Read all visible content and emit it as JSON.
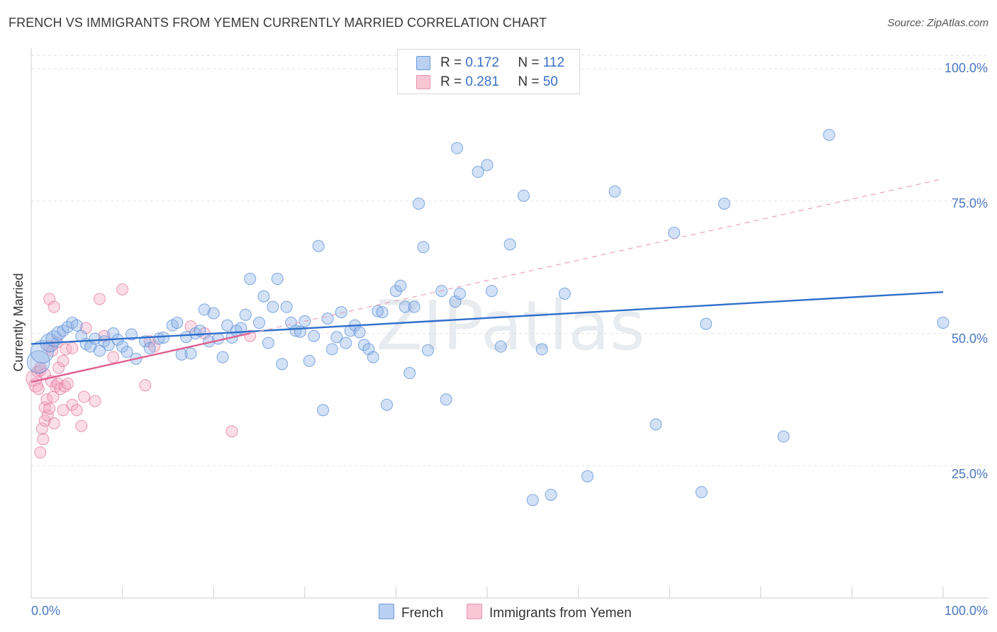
{
  "title": "FRENCH VS IMMIGRANTS FROM YEMEN CURRENTLY MARRIED CORRELATION CHART",
  "source": "Source: ZipAtlas.com",
  "watermark": "ZIPatlas",
  "chart_data": {
    "type": "scatter",
    "title": "FRENCH VS IMMIGRANTS FROM YEMEN CURRENTLY MARRIED CORRELATION CHART",
    "xlabel": "",
    "ylabel": "Currently Married",
    "xlim": [
      0,
      100
    ],
    "ylim": [
      0,
      100
    ],
    "x_tick_labels": {
      "left": "0.0%",
      "right": "100.0%"
    },
    "y_ticks": [
      {
        "value": 100,
        "label": "100.0%"
      },
      {
        "value": 75,
        "label": "75.0%"
      },
      {
        "value": 50,
        "label": "50.0%"
      },
      {
        "value": 25,
        "label": "25.0%"
      }
    ],
    "grid": true,
    "legend": {
      "position": "top-center",
      "entries": [
        {
          "r_label": "R =",
          "r_value": "0.172",
          "n_label": "N =",
          "n_value": "112"
        },
        {
          "r_label": "R =",
          "r_value": "0.281",
          "n_label": "N =",
          "n_value": "50"
        }
      ]
    },
    "series": [
      {
        "name": "French",
        "color": "#8fb4e8",
        "edge": "#5b8fd6",
        "trend": {
          "x0": 0,
          "y0": 48.0,
          "x1": 100,
          "y1": 57.8,
          "color": "#2f6fcb"
        },
        "points": [
          [
            0.8,
            44.6,
            2
          ],
          [
            1.2,
            46.5,
            2
          ],
          [
            2.0,
            48.2,
            1.6
          ],
          [
            2.5,
            49.0,
            1.4
          ],
          [
            3.0,
            50.0,
            1.2
          ],
          [
            3.5,
            50.5,
            1
          ],
          [
            4.0,
            51.2,
            1
          ],
          [
            4.5,
            52.0,
            1
          ],
          [
            5.0,
            51.5,
            1
          ],
          [
            5.5,
            49.5,
            1
          ],
          [
            6.0,
            48.0,
            1
          ],
          [
            6.5,
            47.5,
            1
          ],
          [
            7.0,
            49.0,
            1
          ],
          [
            7.5,
            46.7,
            1
          ],
          [
            8.0,
            48.5,
            1
          ],
          [
            8.5,
            47.8,
            1
          ],
          [
            9.0,
            50.0,
            1
          ],
          [
            9.5,
            48.8,
            1
          ],
          [
            10.0,
            47.5,
            1
          ],
          [
            10.5,
            46.5,
            1
          ],
          [
            11.0,
            49.8,
            1
          ],
          [
            11.5,
            45.2,
            1
          ],
          [
            12.5,
            48.5,
            1
          ],
          [
            13.0,
            47.2,
            1
          ],
          [
            14.0,
            49.0,
            1
          ],
          [
            14.5,
            49.2,
            1
          ],
          [
            15.5,
            51.5,
            1
          ],
          [
            16.0,
            52.0,
            1
          ],
          [
            16.5,
            46.0,
            1
          ],
          [
            17.0,
            49.3,
            1
          ],
          [
            17.5,
            46.2,
            1
          ],
          [
            18.0,
            50.0,
            1
          ],
          [
            18.5,
            50.5,
            1
          ],
          [
            19.0,
            54.5,
            1
          ],
          [
            19.5,
            48.5,
            1
          ],
          [
            20.0,
            53.8,
            1
          ],
          [
            20.5,
            49.0,
            1
          ],
          [
            21.0,
            45.5,
            1
          ],
          [
            21.5,
            51.5,
            1
          ],
          [
            22.0,
            49.2,
            1
          ],
          [
            22.5,
            50.5,
            1
          ],
          [
            23.0,
            51.0,
            1
          ],
          [
            23.5,
            53.5,
            1
          ],
          [
            24.0,
            60.3,
            1
          ],
          [
            25.0,
            52.0,
            1
          ],
          [
            25.5,
            57.0,
            1
          ],
          [
            26.0,
            48.2,
            1
          ],
          [
            26.5,
            55.0,
            1
          ],
          [
            27.0,
            60.3,
            1
          ],
          [
            27.5,
            44.2,
            1
          ],
          [
            28.0,
            55.0,
            1
          ],
          [
            28.5,
            52.0,
            1
          ],
          [
            29.0,
            50.5,
            1
          ],
          [
            29.5,
            50.3,
            1
          ],
          [
            30.0,
            52.3,
            1
          ],
          [
            30.5,
            44.8,
            1
          ],
          [
            31.0,
            49.5,
            1
          ],
          [
            31.5,
            66.5,
            1
          ],
          [
            32.0,
            35.5,
            1
          ],
          [
            32.5,
            52.8,
            1
          ],
          [
            33.0,
            47.0,
            1
          ],
          [
            33.5,
            49.3,
            1
          ],
          [
            34.0,
            54.0,
            1
          ],
          [
            34.5,
            48.2,
            1
          ],
          [
            35.0,
            50.5,
            1
          ],
          [
            35.5,
            51.5,
            1
          ],
          [
            36.0,
            50.2,
            1
          ],
          [
            36.5,
            47.8,
            1
          ],
          [
            37.0,
            47.0,
            1
          ],
          [
            37.5,
            45.5,
            1
          ],
          [
            38.0,
            54.2,
            1
          ],
          [
            38.5,
            54.0,
            1
          ],
          [
            39.0,
            36.5,
            1
          ],
          [
            40.0,
            58.0,
            1
          ],
          [
            40.5,
            59.0,
            1
          ],
          [
            41.0,
            55.0,
            1
          ],
          [
            41.5,
            42.5,
            1
          ],
          [
            42.0,
            55.0,
            1
          ],
          [
            42.5,
            74.5,
            1
          ],
          [
            43.0,
            66.3,
            1
          ],
          [
            43.5,
            46.8,
            1
          ],
          [
            45.0,
            58.0,
            1
          ],
          [
            45.5,
            37.5,
            1
          ],
          [
            46.5,
            56.0,
            1
          ],
          [
            46.7,
            85.0,
            1
          ],
          [
            47.0,
            57.5,
            1
          ],
          [
            49.0,
            80.5,
            1
          ],
          [
            50.0,
            81.8,
            1
          ],
          [
            50.5,
            58.0,
            1
          ],
          [
            51.5,
            47.5,
            1
          ],
          [
            52.5,
            66.8,
            1
          ],
          [
            54.0,
            76.0,
            1
          ],
          [
            55.0,
            18.5,
            1
          ],
          [
            56.0,
            47.0,
            1
          ],
          [
            57.0,
            19.5,
            1
          ],
          [
            58.5,
            57.5,
            1
          ],
          [
            61.0,
            23.0,
            1
          ],
          [
            64.0,
            76.8,
            1
          ],
          [
            68.5,
            32.8,
            1
          ],
          [
            70.5,
            69.0,
            1
          ],
          [
            73.5,
            20.0,
            1
          ],
          [
            74.0,
            51.8,
            1
          ],
          [
            76.0,
            74.5,
            1
          ],
          [
            82.5,
            30.5,
            1
          ],
          [
            87.5,
            87.5,
            1
          ],
          [
            100.0,
            52.0,
            1
          ]
        ]
      },
      {
        "name": "Immigrants from Yemen",
        "color": "#f4a9c2",
        "edge": "#e07a9f",
        "trend": {
          "x0": 0,
          "y0": 40.8,
          "x1": 24.0,
          "y1": 50.0,
          "color": "#e06090",
          "dash_to": {
            "x": 100,
            "y": 79.2
          }
        },
        "points": [
          [
            0.3,
            41.5,
            1.4
          ],
          [
            0.5,
            40.2,
            1.2
          ],
          [
            0.7,
            42.8,
            1
          ],
          [
            0.8,
            39.5,
            1
          ],
          [
            1.0,
            43.0,
            1
          ],
          [
            1.0,
            27.5,
            1
          ],
          [
            1.2,
            32.0,
            1
          ],
          [
            1.3,
            30.0,
            1
          ],
          [
            1.5,
            36.0,
            1
          ],
          [
            1.5,
            33.5,
            1
          ],
          [
            1.7,
            37.5,
            1
          ],
          [
            1.8,
            34.5,
            1
          ],
          [
            2.0,
            35.8,
            1
          ],
          [
            2.0,
            47.5,
            1
          ],
          [
            2.0,
            56.5,
            1
          ],
          [
            2.2,
            41.0,
            1
          ],
          [
            2.3,
            46.7,
            1
          ],
          [
            2.4,
            38.0,
            1
          ],
          [
            2.5,
            33.0,
            1
          ],
          [
            2.5,
            55.0,
            1
          ],
          [
            2.7,
            40.0,
            1
          ],
          [
            2.9,
            40.5,
            1
          ],
          [
            3.0,
            43.5,
            1
          ],
          [
            3.2,
            39.5,
            1
          ],
          [
            3.5,
            44.8,
            1
          ],
          [
            3.5,
            35.5,
            1
          ],
          [
            3.7,
            40.0,
            1
          ],
          [
            3.8,
            47.0,
            1
          ],
          [
            4.0,
            40.5,
            1
          ],
          [
            4.5,
            47.2,
            1
          ],
          [
            4.5,
            36.5,
            1
          ],
          [
            5.0,
            35.5,
            1
          ],
          [
            5.5,
            32.5,
            1
          ],
          [
            5.8,
            38.0,
            1
          ],
          [
            6.0,
            51.0,
            1
          ],
          [
            7.0,
            37.2,
            1
          ],
          [
            7.5,
            56.5,
            1
          ],
          [
            8.0,
            49.5,
            1
          ],
          [
            9.0,
            45.5,
            1
          ],
          [
            10.0,
            58.3,
            1
          ],
          [
            12.5,
            40.2,
            1
          ],
          [
            13.0,
            48.5,
            1
          ],
          [
            13.5,
            47.5,
            1
          ],
          [
            17.5,
            51.3,
            1
          ],
          [
            19.0,
            50.0,
            1
          ],
          [
            22.0,
            31.5,
            1
          ],
          [
            24.0,
            49.5,
            1
          ],
          [
            1.0,
            43.5,
            1
          ],
          [
            2.8,
            48.3,
            1
          ],
          [
            1.5,
            42.3,
            1
          ]
        ]
      }
    ]
  },
  "bottom_legend": [
    {
      "label": "French"
    },
    {
      "label": "Immigrants from Yemen"
    }
  ],
  "colors": {
    "french": "#8fb4e8",
    "yemen": "#f4a9c2",
    "accent": "#3b70c4"
  }
}
